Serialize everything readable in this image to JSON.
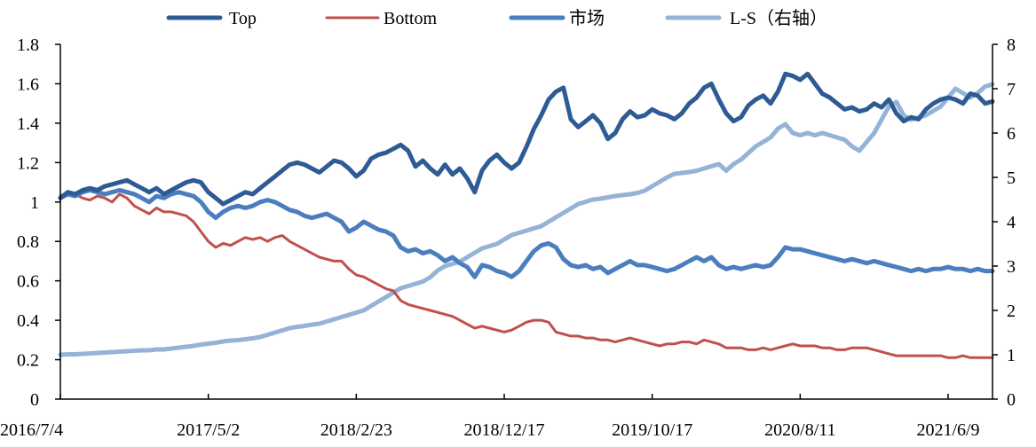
{
  "chart_data": {
    "type": "line",
    "title": "",
    "xlabel": "",
    "ylabel": "",
    "x_tick_labels": [
      "2016/7/4",
      "2017/5/2",
      "2018/2/23",
      "2018/12/17",
      "2019/10/17",
      "2020/8/11",
      "2021/6/9"
    ],
    "x_range": [
      0,
      1260
    ],
    "x_tick_positions": [
      0,
      200,
      400,
      600,
      800,
      1000,
      1200
    ],
    "y_left": {
      "range": [
        0,
        1.8
      ],
      "ticks": [
        0,
        0.2,
        0.4,
        0.6,
        0.8,
        1,
        1.2,
        1.4,
        1.6,
        1.8
      ],
      "tick_labels": [
        "0",
        "0.2",
        "0.4",
        "0.6",
        "0.8",
        "1",
        "1.2",
        "1.4",
        "1.6",
        "1.8"
      ]
    },
    "y_right": {
      "range": [
        0,
        8
      ],
      "ticks": [
        0,
        1,
        2,
        3,
        4,
        5,
        6,
        7,
        8
      ],
      "tick_labels": [
        "0",
        "1",
        "2",
        "3",
        "4",
        "5",
        "6",
        "7",
        "8"
      ]
    },
    "legend_position": "top-center",
    "grid": false,
    "series": [
      {
        "name": "Top",
        "axis": "left",
        "color": "#2E5B93",
        "x": [
          0,
          10,
          20,
          30,
          40,
          50,
          60,
          70,
          80,
          90,
          100,
          110,
          120,
          130,
          140,
          150,
          160,
          170,
          180,
          190,
          200,
          210,
          220,
          230,
          240,
          250,
          260,
          270,
          280,
          290,
          300,
          310,
          320,
          330,
          340,
          350,
          360,
          370,
          380,
          390,
          400,
          410,
          420,
          430,
          440,
          450,
          460,
          470,
          480,
          490,
          500,
          510,
          520,
          530,
          540,
          550,
          560,
          570,
          580,
          590,
          600,
          610,
          620,
          630,
          640,
          650,
          660,
          670,
          680,
          690,
          700,
          710,
          720,
          730,
          740,
          750,
          760,
          770,
          780,
          790,
          800,
          810,
          820,
          830,
          840,
          850,
          860,
          870,
          880,
          890,
          900,
          910,
          920,
          930,
          940,
          950,
          960,
          970,
          980,
          990,
          1000,
          1010,
          1020,
          1030,
          1040,
          1050,
          1060,
          1070,
          1080,
          1090,
          1100,
          1110,
          1120,
          1130,
          1140,
          1150,
          1160,
          1170,
          1180,
          1190,
          1200,
          1210,
          1220,
          1230,
          1240,
          1250,
          1260
        ],
        "values": [
          1.02,
          1.05,
          1.04,
          1.06,
          1.07,
          1.06,
          1.08,
          1.09,
          1.1,
          1.11,
          1.09,
          1.07,
          1.05,
          1.07,
          1.04,
          1.06,
          1.08,
          1.1,
          1.11,
          1.1,
          1.05,
          1.02,
          0.99,
          1.01,
          1.03,
          1.05,
          1.04,
          1.07,
          1.1,
          1.13,
          1.16,
          1.19,
          1.2,
          1.19,
          1.17,
          1.15,
          1.18,
          1.21,
          1.2,
          1.17,
          1.13,
          1.16,
          1.22,
          1.24,
          1.25,
          1.27,
          1.29,
          1.26,
          1.18,
          1.21,
          1.17,
          1.14,
          1.19,
          1.14,
          1.17,
          1.12,
          1.05,
          1.16,
          1.21,
          1.24,
          1.2,
          1.17,
          1.2,
          1.28,
          1.37,
          1.44,
          1.52,
          1.56,
          1.58,
          1.42,
          1.38,
          1.41,
          1.44,
          1.4,
          1.32,
          1.35,
          1.42,
          1.46,
          1.43,
          1.44,
          1.47,
          1.45,
          1.44,
          1.42,
          1.45,
          1.5,
          1.53,
          1.58,
          1.6,
          1.52,
          1.45,
          1.41,
          1.43,
          1.49,
          1.52,
          1.54,
          1.5,
          1.56,
          1.65,
          1.64,
          1.62,
          1.65,
          1.6,
          1.55,
          1.53,
          1.5,
          1.47,
          1.48,
          1.46,
          1.47,
          1.5,
          1.48,
          1.52,
          1.45,
          1.41,
          1.43,
          1.42,
          1.47,
          1.5,
          1.52,
          1.53,
          1.52,
          1.5,
          1.55,
          1.54,
          1.5,
          1.51
        ]
      },
      {
        "name": "Bottom",
        "axis": "left",
        "color": "#C0504D",
        "x": [
          0,
          10,
          20,
          30,
          40,
          50,
          60,
          70,
          80,
          90,
          100,
          110,
          120,
          130,
          140,
          150,
          160,
          170,
          180,
          190,
          200,
          210,
          220,
          230,
          240,
          250,
          260,
          270,
          280,
          290,
          300,
          310,
          320,
          330,
          340,
          350,
          360,
          370,
          380,
          390,
          400,
          410,
          420,
          430,
          440,
          450,
          460,
          470,
          480,
          490,
          500,
          510,
          520,
          530,
          540,
          550,
          560,
          570,
          580,
          590,
          600,
          610,
          620,
          630,
          640,
          650,
          660,
          670,
          680,
          690,
          700,
          710,
          720,
          730,
          740,
          750,
          760,
          770,
          780,
          790,
          800,
          810,
          820,
          830,
          840,
          850,
          860,
          870,
          880,
          890,
          900,
          910,
          920,
          930,
          940,
          950,
          960,
          970,
          980,
          990,
          1000,
          1010,
          1020,
          1030,
          1040,
          1050,
          1060,
          1070,
          1080,
          1090,
          1100,
          1110,
          1120,
          1130,
          1140,
          1150,
          1160,
          1170,
          1180,
          1190,
          1200,
          1210,
          1220,
          1230,
          1240,
          1250,
          1260
        ],
        "values": [
          1.03,
          1.05,
          1.04,
          1.02,
          1.01,
          1.03,
          1.02,
          1.0,
          1.04,
          1.02,
          0.98,
          0.96,
          0.94,
          0.97,
          0.95,
          0.95,
          0.94,
          0.93,
          0.9,
          0.85,
          0.8,
          0.77,
          0.79,
          0.78,
          0.8,
          0.82,
          0.81,
          0.82,
          0.8,
          0.82,
          0.83,
          0.8,
          0.78,
          0.76,
          0.74,
          0.72,
          0.71,
          0.7,
          0.7,
          0.66,
          0.63,
          0.62,
          0.6,
          0.58,
          0.56,
          0.55,
          0.5,
          0.48,
          0.47,
          0.46,
          0.45,
          0.44,
          0.43,
          0.42,
          0.4,
          0.38,
          0.36,
          0.37,
          0.36,
          0.35,
          0.34,
          0.35,
          0.37,
          0.39,
          0.4,
          0.4,
          0.39,
          0.34,
          0.33,
          0.32,
          0.32,
          0.31,
          0.31,
          0.3,
          0.3,
          0.29,
          0.3,
          0.31,
          0.3,
          0.29,
          0.28,
          0.27,
          0.28,
          0.28,
          0.29,
          0.29,
          0.28,
          0.3,
          0.29,
          0.28,
          0.26,
          0.26,
          0.26,
          0.25,
          0.25,
          0.26,
          0.25,
          0.26,
          0.27,
          0.28,
          0.27,
          0.27,
          0.27,
          0.26,
          0.26,
          0.25,
          0.25,
          0.26,
          0.26,
          0.26,
          0.25,
          0.24,
          0.23,
          0.22,
          0.22,
          0.22,
          0.22,
          0.22,
          0.22,
          0.22,
          0.21,
          0.21,
          0.22,
          0.21,
          0.21,
          0.21,
          0.21
        ]
      },
      {
        "name": "市场",
        "axis": "left",
        "color": "#4A7EBF",
        "x": [
          0,
          10,
          20,
          30,
          40,
          50,
          60,
          70,
          80,
          90,
          100,
          110,
          120,
          130,
          140,
          150,
          160,
          170,
          180,
          190,
          200,
          210,
          220,
          230,
          240,
          250,
          260,
          270,
          280,
          290,
          300,
          310,
          320,
          330,
          340,
          350,
          360,
          370,
          380,
          390,
          400,
          410,
          420,
          430,
          440,
          450,
          460,
          470,
          480,
          490,
          500,
          510,
          520,
          530,
          540,
          550,
          560,
          570,
          580,
          590,
          600,
          610,
          620,
          630,
          640,
          650,
          660,
          670,
          680,
          690,
          700,
          710,
          720,
          730,
          740,
          750,
          760,
          770,
          780,
          790,
          800,
          810,
          820,
          830,
          840,
          850,
          860,
          870,
          880,
          890,
          900,
          910,
          920,
          930,
          940,
          950,
          960,
          970,
          980,
          990,
          1000,
          1010,
          1020,
          1030,
          1040,
          1050,
          1060,
          1070,
          1080,
          1090,
          1100,
          1110,
          1120,
          1130,
          1140,
          1150,
          1160,
          1170,
          1180,
          1190,
          1200,
          1210,
          1220,
          1230,
          1240,
          1250,
          1260
        ],
        "values": [
          1.02,
          1.04,
          1.03,
          1.05,
          1.06,
          1.05,
          1.04,
          1.05,
          1.06,
          1.05,
          1.04,
          1.02,
          1.0,
          1.03,
          1.02,
          1.04,
          1.05,
          1.04,
          1.03,
          1.0,
          0.95,
          0.92,
          0.95,
          0.97,
          0.98,
          0.97,
          0.98,
          1.0,
          1.01,
          1.0,
          0.98,
          0.96,
          0.95,
          0.93,
          0.92,
          0.93,
          0.94,
          0.92,
          0.9,
          0.85,
          0.87,
          0.9,
          0.88,
          0.86,
          0.85,
          0.83,
          0.77,
          0.75,
          0.76,
          0.74,
          0.75,
          0.73,
          0.7,
          0.72,
          0.69,
          0.67,
          0.62,
          0.68,
          0.67,
          0.65,
          0.64,
          0.62,
          0.65,
          0.7,
          0.75,
          0.78,
          0.79,
          0.77,
          0.71,
          0.68,
          0.67,
          0.68,
          0.66,
          0.67,
          0.64,
          0.66,
          0.68,
          0.7,
          0.68,
          0.68,
          0.67,
          0.66,
          0.65,
          0.66,
          0.68,
          0.7,
          0.72,
          0.7,
          0.72,
          0.68,
          0.66,
          0.67,
          0.66,
          0.67,
          0.68,
          0.67,
          0.68,
          0.72,
          0.77,
          0.76,
          0.76,
          0.75,
          0.74,
          0.73,
          0.72,
          0.71,
          0.7,
          0.71,
          0.7,
          0.69,
          0.7,
          0.69,
          0.68,
          0.67,
          0.66,
          0.65,
          0.66,
          0.65,
          0.66,
          0.66,
          0.67,
          0.66,
          0.66,
          0.65,
          0.66,
          0.65,
          0.65
        ]
      },
      {
        "name": "L-S（右轴）",
        "axis": "right",
        "color": "#95B3D7",
        "x": [
          0,
          10,
          20,
          30,
          40,
          50,
          60,
          70,
          80,
          90,
          100,
          110,
          120,
          130,
          140,
          150,
          160,
          170,
          180,
          190,
          200,
          210,
          220,
          230,
          240,
          250,
          260,
          270,
          280,
          290,
          300,
          310,
          320,
          330,
          340,
          350,
          360,
          370,
          380,
          390,
          400,
          410,
          420,
          430,
          440,
          450,
          460,
          470,
          480,
          490,
          500,
          510,
          520,
          530,
          540,
          550,
          560,
          570,
          580,
          590,
          600,
          610,
          620,
          630,
          640,
          650,
          660,
          670,
          680,
          690,
          700,
          710,
          720,
          730,
          740,
          750,
          760,
          770,
          780,
          790,
          800,
          810,
          820,
          830,
          840,
          850,
          860,
          870,
          880,
          890,
          900,
          910,
          920,
          930,
          940,
          950,
          960,
          970,
          980,
          990,
          1000,
          1010,
          1020,
          1030,
          1040,
          1050,
          1060,
          1070,
          1080,
          1090,
          1100,
          1110,
          1120,
          1130,
          1140,
          1150,
          1160,
          1170,
          1180,
          1190,
          1200,
          1210,
          1220,
          1230,
          1240,
          1250,
          1260
        ],
        "values": [
          1.0,
          1.01,
          1.01,
          1.02,
          1.03,
          1.04,
          1.05,
          1.06,
          1.07,
          1.08,
          1.09,
          1.1,
          1.1,
          1.12,
          1.12,
          1.14,
          1.16,
          1.18,
          1.2,
          1.23,
          1.25,
          1.27,
          1.3,
          1.32,
          1.33,
          1.35,
          1.37,
          1.4,
          1.45,
          1.5,
          1.55,
          1.6,
          1.63,
          1.65,
          1.68,
          1.7,
          1.75,
          1.8,
          1.85,
          1.9,
          1.95,
          2.0,
          2.1,
          2.2,
          2.3,
          2.4,
          2.5,
          2.55,
          2.6,
          2.65,
          2.75,
          2.9,
          3.0,
          3.05,
          3.1,
          3.2,
          3.3,
          3.4,
          3.45,
          3.5,
          3.6,
          3.7,
          3.75,
          3.8,
          3.85,
          3.9,
          4.0,
          4.1,
          4.2,
          4.3,
          4.4,
          4.45,
          4.5,
          4.52,
          4.55,
          4.58,
          4.6,
          4.62,
          4.65,
          4.7,
          4.8,
          4.9,
          5.0,
          5.08,
          5.1,
          5.12,
          5.15,
          5.2,
          5.25,
          5.3,
          5.15,
          5.3,
          5.4,
          5.55,
          5.7,
          5.8,
          5.9,
          6.1,
          6.2,
          6.0,
          5.95,
          6.0,
          5.95,
          6.0,
          5.95,
          5.9,
          5.85,
          5.7,
          5.6,
          5.8,
          6.0,
          6.3,
          6.6,
          6.7,
          6.4,
          6.3,
          6.35,
          6.4,
          6.5,
          6.6,
          6.8,
          7.0,
          6.9,
          6.8,
          6.9,
          7.05,
          7.1
        ]
      }
    ]
  }
}
